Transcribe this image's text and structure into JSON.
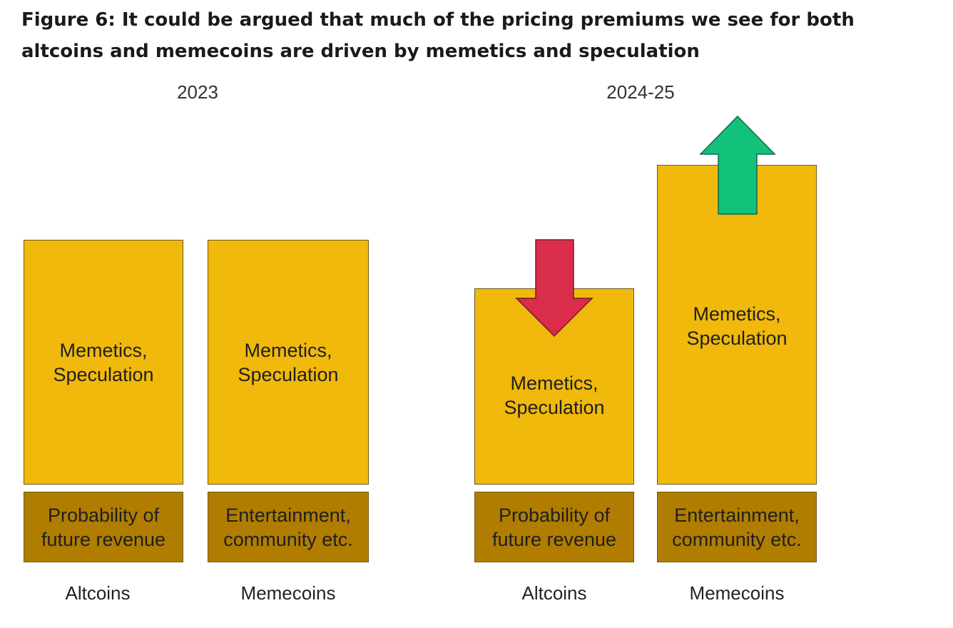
{
  "figure_title": "Figure 6: It could be argued that much of the pricing premiums we see for both altcoins and memecoins are driven by memetics and speculation",
  "sections": [
    {
      "title": "2023"
    },
    {
      "title": "2024-25"
    }
  ],
  "columns": [
    {
      "category": "Altcoins",
      "upper_label": "Memetics,\nSpeculation",
      "lower_label": "Probability of\nfuture revenue"
    },
    {
      "category": "Memecoins",
      "upper_label": "Memetics,\nSpeculation",
      "lower_label": "Entertainment,\ncommunity etc."
    },
    {
      "category": "Altcoins",
      "upper_label": "Memetics,\nSpeculation",
      "lower_label": "Probability of\nfuture revenue",
      "change_arrow": "down-arrow-icon"
    },
    {
      "category": "Memecoins",
      "upper_label": "Memetics,\nSpeculation",
      "lower_label": "Entertainment,\ncommunity etc.",
      "change_arrow": "up-arrow-icon"
    }
  ],
  "colors": {
    "speculation_box": "#f0b90b",
    "fundamental_box": "#b07d00",
    "down_arrow": "#d92d4b",
    "up_arrow": "#12c27a"
  }
}
